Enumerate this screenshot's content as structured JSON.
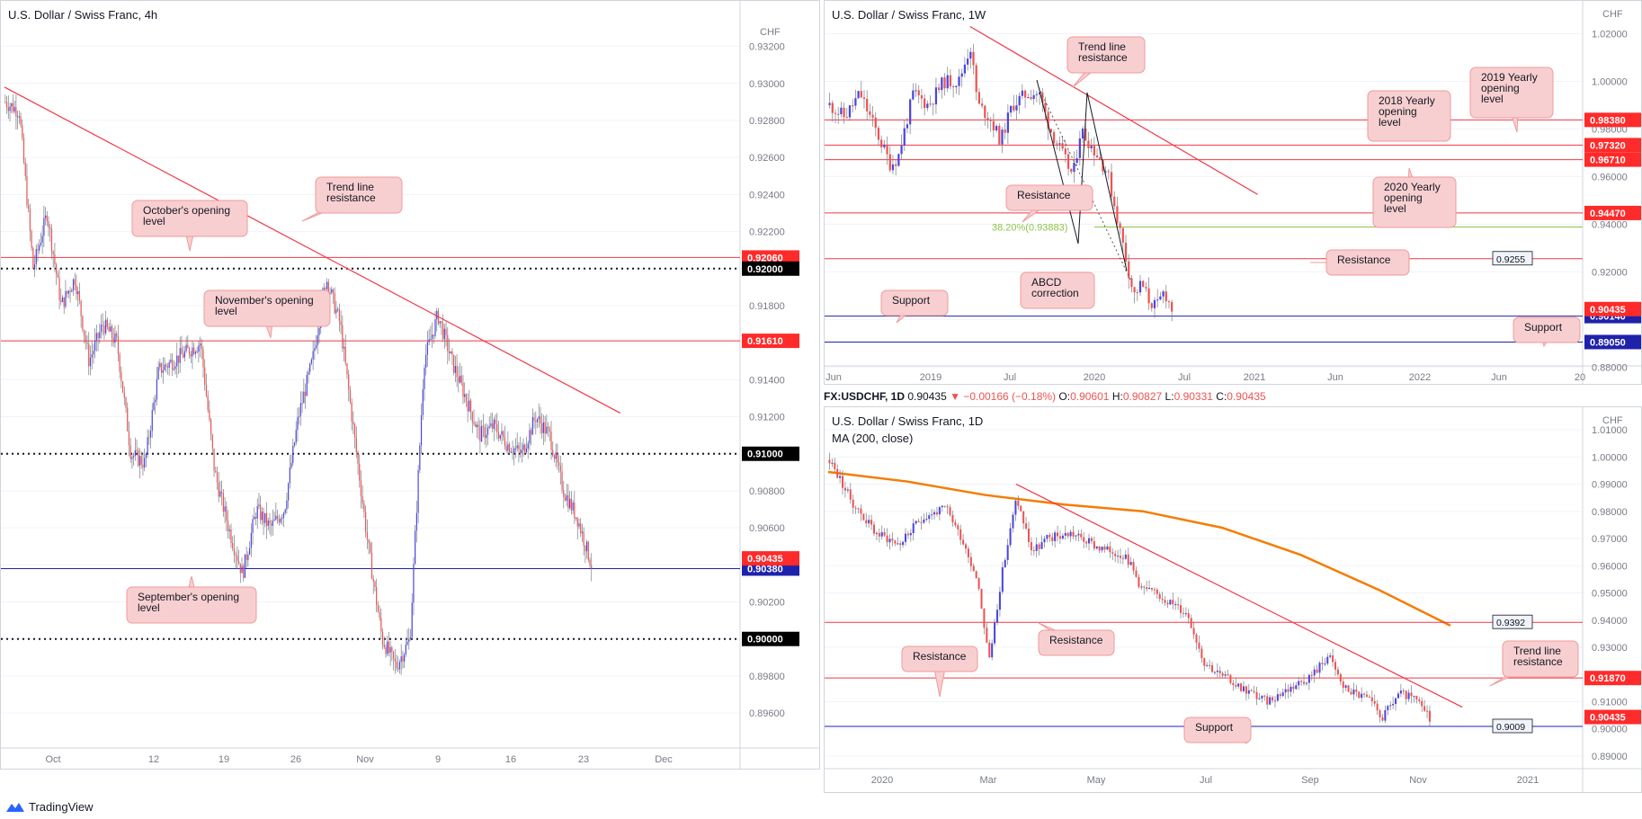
{
  "colors": {
    "up": "#4b45e0",
    "down": "#ef5350",
    "red_line": "#f23645",
    "blue_line": "#1e22aa",
    "ma": "#f57c00",
    "fib": "#8bc34a",
    "callout_bg": "#f8cfd0",
    "callout_border": "#ef9a9a"
  },
  "footer": {
    "brand": "TradingView"
  },
  "infobar": {
    "symbol": "FX:USDCHF, 1D",
    "price": "0.90435",
    "change": "▼ −0.00166 (−0.18%)",
    "ohlc": {
      "o_label": "O:",
      "o": "0.90601",
      "h_label": "H:",
      "h": "0.90827",
      "l_label": "L:",
      "l": "0.90331",
      "c_label": "C:",
      "c": "0.90435"
    }
  },
  "chart_data": [
    {
      "id": "4h",
      "type": "candlestick",
      "title": "U.S. Dollar / Swiss Franc, 4h",
      "currency": "CHF",
      "ylim": [
        0.8945,
        0.933
      ],
      "y_ticks": [
        "0.93200",
        "0.93000",
        "0.92800",
        "0.92600",
        "0.92400",
        "0.92200",
        "0.92000",
        "0.91800",
        "0.91600",
        "0.91400",
        "0.91200",
        "0.91000",
        "0.90800",
        "0.90600",
        "0.90400",
        "0.90200",
        "0.90000",
        "0.89800",
        "0.89600"
      ],
      "x_ticks": [
        "Oct",
        "12",
        "19",
        "26",
        "Nov",
        "9",
        "16",
        "23",
        "Dec"
      ],
      "close_path": [
        [
          0,
          0.929
        ],
        [
          2,
          0.9285
        ],
        [
          4,
          0.92
        ],
        [
          6,
          0.923
        ],
        [
          8,
          0.918
        ],
        [
          10,
          0.9195
        ],
        [
          12,
          0.915
        ],
        [
          14,
          0.917
        ],
        [
          16,
          0.916
        ],
        [
          18,
          0.91
        ],
        [
          20,
          0.9095
        ],
        [
          22,
          0.9145
        ],
        [
          24,
          0.915
        ],
        [
          26,
          0.9155
        ],
        [
          28,
          0.916
        ],
        [
          30,
          0.909
        ],
        [
          32,
          0.906
        ],
        [
          34,
          0.9035
        ],
        [
          36,
          0.907
        ],
        [
          38,
          0.906
        ],
        [
          40,
          0.907
        ],
        [
          42,
          0.912
        ],
        [
          44,
          0.915
        ],
        [
          46,
          0.9195
        ],
        [
          48,
          0.917
        ],
        [
          50,
          0.911
        ],
        [
          52,
          0.905
        ],
        [
          54,
          0.9
        ],
        [
          56,
          0.8985
        ],
        [
          58,
          0.9
        ],
        [
          60,
          0.915
        ],
        [
          62,
          0.9175
        ],
        [
          64,
          0.915
        ],
        [
          66,
          0.913
        ],
        [
          68,
          0.911
        ],
        [
          70,
          0.9115
        ],
        [
          72,
          0.9105
        ],
        [
          74,
          0.91
        ],
        [
          76,
          0.912
        ],
        [
          78,
          0.911
        ],
        [
          80,
          0.908
        ],
        [
          82,
          0.9065
        ],
        [
          84,
          0.904
        ]
      ],
      "h_lines": [
        {
          "price": 0.9206,
          "label": "0.92060",
          "style": "solid",
          "color": "red"
        },
        {
          "price": 0.92,
          "label": "0.92000",
          "style": "dotted",
          "color": "black"
        },
        {
          "price": 0.9161,
          "label": "0.91610",
          "style": "solid",
          "color": "red"
        },
        {
          "price": 0.91,
          "label": "0.91000",
          "style": "dotted",
          "color": "black"
        },
        {
          "price": 0.9038,
          "label": "0.90380",
          "style": "solid",
          "color": "blue"
        },
        {
          "price": 0.9,
          "label": "0.90000",
          "style": "dotted",
          "color": "black"
        }
      ],
      "last_price": {
        "price": 0.90435,
        "label": "0.90435"
      },
      "trend_line": {
        "from": [
          0,
          0.9298
        ],
        "to": [
          88,
          0.9122
        ]
      },
      "annotations": [
        {
          "text": "Trend line\nresistance",
          "anchor": "trend"
        },
        {
          "text": "October's opening\nlevel",
          "anchor": "0.92060"
        },
        {
          "text": "November's opening\nlevel",
          "anchor": "0.91610"
        },
        {
          "text": "September's opening\nlevel",
          "anchor": "0.90380"
        }
      ]
    },
    {
      "id": "1w",
      "type": "candlestick",
      "title": "U.S. Dollar / Swiss Franc, 1W",
      "currency": "CHF",
      "ylim": [
        0.8835,
        1.03
      ],
      "y_ticks": [
        "1.02000",
        "1.00000",
        "0.98000",
        "0.96000",
        "0.94000",
        "0.92000",
        "0.90000",
        "0.88000"
      ],
      "x_ticks": [
        "Jun",
        "2019",
        "Jul",
        "2020",
        "Jul",
        "2021",
        "Jun",
        "2022",
        "Jun",
        "20"
      ],
      "close_path": [
        [
          0,
          0.99
        ],
        [
          4,
          0.985
        ],
        [
          8,
          0.995
        ],
        [
          12,
          0.98
        ],
        [
          16,
          0.965
        ],
        [
          18,
          0.968
        ],
        [
          22,
          0.995
        ],
        [
          26,
          0.99
        ],
        [
          30,
          1.0
        ],
        [
          34,
          1.0
        ],
        [
          37,
          1.015
        ],
        [
          39,
          0.99
        ],
        [
          42,
          0.985
        ],
        [
          45,
          0.975
        ],
        [
          48,
          0.99
        ],
        [
          52,
          0.995
        ],
        [
          55,
          0.995
        ],
        [
          58,
          0.98
        ],
        [
          61,
          0.97
        ],
        [
          64,
          0.96
        ],
        [
          66,
          0.98
        ],
        [
          70,
          0.97
        ],
        [
          73,
          0.962
        ],
        [
          76,
          0.94
        ],
        [
          78,
          0.925
        ],
        [
          80,
          0.91
        ],
        [
          82,
          0.915
        ],
        [
          84,
          0.908
        ],
        [
          86,
          0.905
        ],
        [
          88,
          0.912
        ],
        [
          90,
          0.9043
        ]
      ],
      "h_lines": [
        {
          "price": 0.9838,
          "label": "0.98380",
          "style": "solid",
          "color": "red"
        },
        {
          "price": 0.9732,
          "label": "0.97320",
          "style": "solid",
          "color": "red"
        },
        {
          "price": 0.9671,
          "label": "0.96710",
          "style": "solid",
          "color": "red"
        },
        {
          "price": 0.9447,
          "label": "0.94470",
          "style": "solid",
          "color": "red"
        },
        {
          "price": 0.9255,
          "label": "0.9255",
          "style": "solid",
          "color": "red",
          "tag": "grey"
        },
        {
          "price": 0.9014,
          "label": "0.90140",
          "style": "solid",
          "color": "blue"
        },
        {
          "price": 0.8905,
          "label": "0.89050",
          "style": "solid",
          "color": "blue"
        }
      ],
      "last_price": {
        "price": 0.90435,
        "label": "0.90435"
      },
      "fib": {
        "price": 0.93883,
        "label": "38.20%(0.93883)"
      },
      "trend_line": {
        "from": [
          37,
          1.023
        ],
        "to": [
          112,
          0.9525
        ]
      },
      "annotations": [
        {
          "text": "Trend line\nresistance"
        },
        {
          "text": "2019 Yearly\nopening\nlevel"
        },
        {
          "text": "2018 Yearly\nopening\nlevel"
        },
        {
          "text": "2020 Yearly\nopening\nlevel"
        },
        {
          "text": "Resistance",
          "anchor": "0.94470"
        },
        {
          "text": "Resistance",
          "anchor": "0.9255"
        },
        {
          "text": "ABCD\ncorrection"
        },
        {
          "text": "Support",
          "anchor": "0.90140"
        },
        {
          "text": "Support",
          "anchor": "0.89050"
        }
      ]
    },
    {
      "id": "1d",
      "type": "candlestick",
      "title": "U.S. Dollar / Swiss Franc, 1D",
      "subtitle": "MA (200, close)",
      "currency": "CHF",
      "ylim": [
        0.888,
        1.015
      ],
      "y_ticks": [
        "1.01000",
        "1.00000",
        "0.99000",
        "0.98000",
        "0.97000",
        "0.96000",
        "0.95000",
        "0.94000",
        "0.93000",
        "0.92000",
        "0.91000",
        "0.90000",
        "0.89000"
      ],
      "x_ticks": [
        "2020",
        "Mar",
        "May",
        "Jul",
        "Sep",
        "Nov",
        "2021"
      ],
      "close_path": [
        [
          0,
          0.999
        ],
        [
          6,
          0.983
        ],
        [
          12,
          0.972
        ],
        [
          18,
          0.968
        ],
        [
          24,
          0.978
        ],
        [
          30,
          0.981
        ],
        [
          34,
          0.97
        ],
        [
          38,
          0.955
        ],
        [
          41,
          0.925
        ],
        [
          44,
          0.955
        ],
        [
          48,
          0.985
        ],
        [
          52,
          0.965
        ],
        [
          56,
          0.97
        ],
        [
          62,
          0.972
        ],
        [
          70,
          0.966
        ],
        [
          76,
          0.964
        ],
        [
          80,
          0.952
        ],
        [
          86,
          0.948
        ],
        [
          92,
          0.942
        ],
        [
          96,
          0.925
        ],
        [
          100,
          0.92
        ],
        [
          106,
          0.915
        ],
        [
          112,
          0.91
        ],
        [
          118,
          0.915
        ],
        [
          124,
          0.92
        ],
        [
          128,
          0.927
        ],
        [
          132,
          0.915
        ],
        [
          138,
          0.911
        ],
        [
          142,
          0.904
        ],
        [
          146,
          0.913
        ],
        [
          150,
          0.911
        ],
        [
          154,
          0.9043
        ]
      ],
      "ma200": [
        [
          0,
          0.9945
        ],
        [
          20,
          0.991
        ],
        [
          40,
          0.986
        ],
        [
          60,
          0.9825
        ],
        [
          80,
          0.98
        ],
        [
          100,
          0.974
        ],
        [
          120,
          0.964
        ],
        [
          140,
          0.951
        ],
        [
          158,
          0.938
        ]
      ],
      "h_lines": [
        {
          "price": 0.9392,
          "label": "0.9392",
          "style": "solid",
          "color": "red",
          "tag": "grey"
        },
        {
          "price": 0.9187,
          "label": "0.91870",
          "style": "solid",
          "color": "red"
        },
        {
          "price": 0.9009,
          "label": "0.9009",
          "style": "solid",
          "color": "blue",
          "tag": "grey"
        }
      ],
      "last_price": {
        "price": 0.90435,
        "label": "0.90435"
      },
      "trend_line": {
        "from": [
          48,
          0.99
        ],
        "to": [
          162,
          0.908
        ]
      },
      "annotations": [
        {
          "text": "Resistance",
          "anchor": "0.9392"
        },
        {
          "text": "Resistance",
          "anchor": "0.91870"
        },
        {
          "text": "Trend line\nresistance"
        },
        {
          "text": "Support",
          "anchor": "0.9009"
        }
      ]
    }
  ]
}
